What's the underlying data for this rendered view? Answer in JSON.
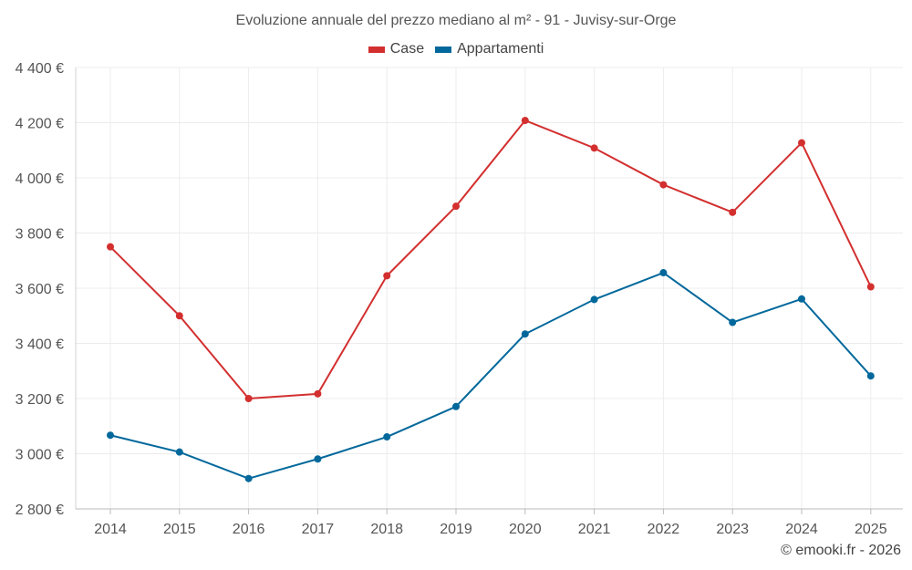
{
  "chart_data": {
    "type": "line",
    "title": "Evoluzione annuale del prezzo mediano al m² - 91 - Juvisy-sur-Orge",
    "categories": [
      "2014",
      "2015",
      "2016",
      "2017",
      "2018",
      "2019",
      "2020",
      "2021",
      "2022",
      "2023",
      "2024",
      "2025"
    ],
    "series": [
      {
        "name": "Case",
        "color": "#d32f2f",
        "values": [
          3750,
          3500,
          3200,
          3217,
          3645,
          3897,
          4208,
          4108,
          3975,
          3875,
          4127,
          3605
        ]
      },
      {
        "name": "Appartamenti",
        "color": "#01689b",
        "values": [
          3067,
          3006,
          2910,
          2981,
          3061,
          3171,
          3434,
          3559,
          3656,
          3476,
          3561,
          3282
        ]
      }
    ],
    "ylim": [
      2800,
      4400
    ],
    "yticks": [
      2800,
      3000,
      3200,
      3400,
      3600,
      3800,
      4000,
      4200,
      4400
    ],
    "ytick_labels": [
      "2 800 €",
      "3 000 €",
      "3 200 €",
      "3 400 €",
      "3 600 €",
      "3 800 €",
      "4 000 €",
      "4 200 €",
      "4 400 €"
    ],
    "xlabel": "",
    "ylabel": "",
    "grid": true,
    "legend_position": "top-center"
  },
  "credit": "© emooki.fr - 2026"
}
